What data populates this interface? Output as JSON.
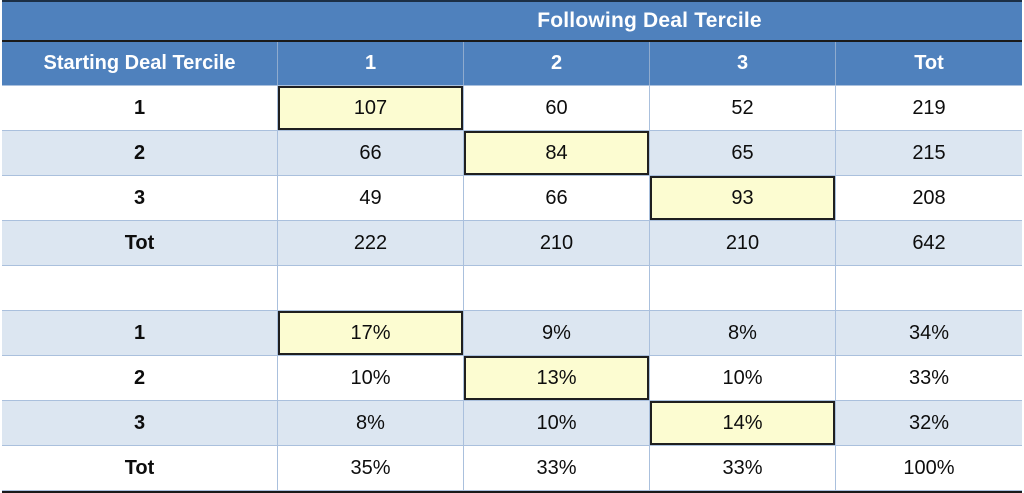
{
  "title": "Following Deal Tercile",
  "header": {
    "row_label": "Starting Deal Tercile",
    "columns": [
      "1",
      "2",
      "3",
      "Tot"
    ]
  },
  "counts": {
    "rows": [
      {
        "label": "1",
        "values": [
          "107",
          "60",
          "52",
          "219"
        ]
      },
      {
        "label": "2",
        "values": [
          "66",
          "84",
          "65",
          "215"
        ]
      },
      {
        "label": "3",
        "values": [
          "49",
          "66",
          "93",
          "208"
        ]
      },
      {
        "label": "Tot",
        "values": [
          "222",
          "210",
          "210",
          "642"
        ]
      }
    ]
  },
  "percentages": {
    "rows": [
      {
        "label": "1",
        "values": [
          "17%",
          "9%",
          "8%",
          "34%"
        ]
      },
      {
        "label": "2",
        "values": [
          "10%",
          "13%",
          "10%",
          "33%"
        ]
      },
      {
        "label": "3",
        "values": [
          "8%",
          "10%",
          "14%",
          "32%"
        ]
      },
      {
        "label": "Tot",
        "values": [
          "35%",
          "33%",
          "33%",
          "100%"
        ]
      }
    ]
  },
  "colors": {
    "header_blue": "#4f81bd",
    "band_blue": "#dce6f1",
    "highlight_yellow": "#fcfcd1",
    "grid_line": "#aac0dd",
    "outline_black": "#1a1a1a"
  },
  "chart_data": {
    "type": "table",
    "title": "Following Deal Tercile",
    "row_axis_label": "Starting Deal Tercile",
    "col_axis_label": "Following Deal Tercile",
    "columns": [
      "1",
      "2",
      "3",
      "Tot"
    ],
    "count_matrix": {
      "row_labels": [
        "1",
        "2",
        "3",
        "Tot"
      ],
      "values": [
        [
          107,
          60,
          52,
          219
        ],
        [
          66,
          84,
          65,
          215
        ],
        [
          49,
          66,
          93,
          208
        ],
        [
          222,
          210,
          210,
          642
        ]
      ]
    },
    "percentage_matrix": {
      "row_labels": [
        "1",
        "2",
        "3",
        "Tot"
      ],
      "values": [
        [
          "17%",
          "9%",
          "8%",
          "34%"
        ],
        [
          "10%",
          "13%",
          "10%",
          "33%"
        ],
        [
          "8%",
          "10%",
          "14%",
          "32%"
        ],
        [
          "35%",
          "33%",
          "33%",
          "100%"
        ]
      ]
    },
    "highlighted_cells": [
      {
        "section": "counts",
        "row": "1",
        "col": "1",
        "value": 107
      },
      {
        "section": "counts",
        "row": "2",
        "col": "2",
        "value": 84
      },
      {
        "section": "counts",
        "row": "3",
        "col": "3",
        "value": 93
      },
      {
        "section": "percentages",
        "row": "1",
        "col": "1",
        "value": "17%"
      },
      {
        "section": "percentages",
        "row": "2",
        "col": "2",
        "value": "13%"
      },
      {
        "section": "percentages",
        "row": "3",
        "col": "3",
        "value": "14%"
      }
    ]
  }
}
